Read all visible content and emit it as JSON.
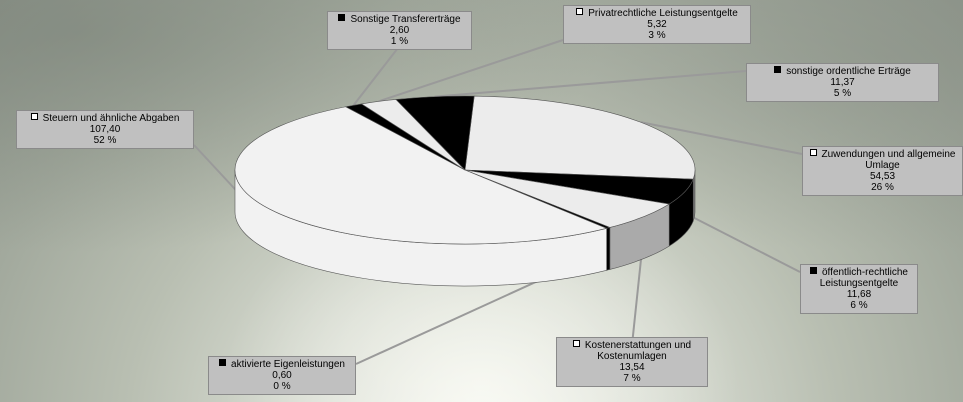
{
  "chart_data": {
    "type": "pie",
    "style": "3d",
    "slices": [
      {
        "label": "Zuwendungen und allgemeine Umlage",
        "value": 54.53,
        "value_text": "54,53",
        "percent_text": "26 %",
        "color": "#ececec",
        "side_color": "#777777",
        "marker": "open"
      },
      {
        "label": "öffentlich-rechtliche Leistungsentgelte",
        "value": 11.68,
        "value_text": "11,68",
        "percent_text": "6 %",
        "color": "#000000",
        "side_color": "#000000",
        "marker": "filled"
      },
      {
        "label": "Kostenerstattungen und Kostenumlagen",
        "value": 13.54,
        "value_text": "13,54",
        "percent_text": "7 %",
        "color": "#ececec",
        "side_color": "#aaaaaa",
        "marker": "open"
      },
      {
        "label": "aktivierte Eigenleistungen",
        "value": 0.6,
        "value_text": "0,60",
        "percent_text": "0 %",
        "color": "#000000",
        "side_color": "#000000",
        "marker": "filled"
      },
      {
        "label": "Steuern und ähnliche Abgaben",
        "value": 107.4,
        "value_text": "107,40",
        "percent_text": "52 %",
        "color": "#f2f2f2",
        "side_color": "#f2f2f2",
        "marker": "open"
      },
      {
        "label": "Sonstige Transfererträge",
        "value": 2.6,
        "value_text": "2,60",
        "percent_text": "1 %",
        "color": "#000000",
        "side_color": "#000000",
        "marker": "filled"
      },
      {
        "label": "Privatrechtliche Leistungsentgelte",
        "value": 5.32,
        "value_text": "5,32",
        "percent_text": "3 %",
        "color": "#ececec",
        "side_color": "#cccccc",
        "marker": "open"
      },
      {
        "label": "sonstige ordentliche Erträge",
        "value": 11.37,
        "value_text": "11,37",
        "percent_text": "5 %",
        "color": "#000000",
        "side_color": "#000000",
        "marker": "filled"
      }
    ],
    "labels": [
      {
        "name_lines": [
          "Sonstige Transfererträge"
        ],
        "value": "2,60",
        "percent": "1 %",
        "marker": "filled"
      },
      {
        "name_lines": [
          "Privatrechtliche Leistungsentgelte"
        ],
        "value": "5,32",
        "percent": "3 %",
        "marker": "open"
      },
      {
        "name_lines": [
          "sonstige ordentliche Erträge"
        ],
        "value": "11,37",
        "percent": "5 %",
        "marker": "filled"
      },
      {
        "name_lines": [
          "Steuern und ähnliche Abgaben"
        ],
        "value": "107,40",
        "percent": "52 %",
        "marker": "open"
      },
      {
        "name_lines": [
          "Zuwendungen und allgemeine",
          "Umlage"
        ],
        "value": "54,53",
        "percent": "26 %",
        "marker": "open"
      },
      {
        "name_lines": [
          "öffentlich-rechtliche",
          "Leistungsentgelte"
        ],
        "value": "11,68",
        "percent": "6 %",
        "marker": "filled"
      },
      {
        "name_lines": [
          "Kostenerstattungen und",
          "Kostenumlagen"
        ],
        "value": "13,54",
        "percent": "7 %",
        "marker": "open"
      },
      {
        "name_lines": [
          "aktivierte Eigenleistungen"
        ],
        "value": "0,60",
        "percent": "0 %",
        "marker": "filled"
      }
    ],
    "legend": "none",
    "grid": false
  }
}
